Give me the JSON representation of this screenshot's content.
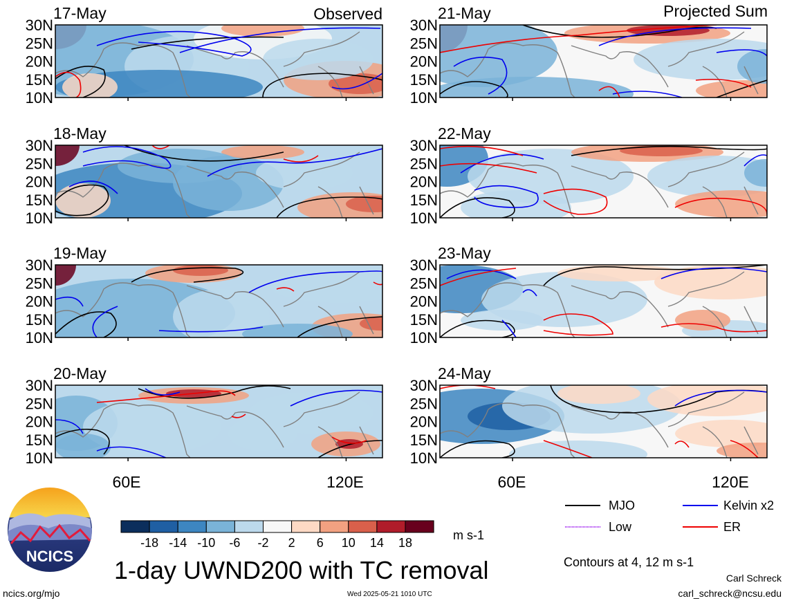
{
  "figure": {
    "title": "1-day UWND200 with TC removal",
    "units": "m s-1",
    "contour_note": "Contours at 4, 12 m s-1",
    "website": "ncics.org/mjo",
    "timestamp": "Wed 2025-05-21 1010 UTC",
    "author": "Carl Schreck",
    "email": "carl_schreck@ncsu.edu",
    "logo_text": "NCICS"
  },
  "columns": {
    "left": "Observed",
    "right": "Projected Sum"
  },
  "panels": {
    "left": [
      "17-May",
      "18-May",
      "19-May",
      "20-May"
    ],
    "right": [
      "21-May",
      "22-May",
      "23-May",
      "24-May"
    ]
  },
  "axes": {
    "lat_ticks": [
      "30N",
      "25N",
      "20N",
      "15N",
      "10N"
    ],
    "lon_ticks": [
      "60E",
      "120E"
    ],
    "lon_range": [
      40,
      130
    ],
    "lat_range": [
      10,
      30
    ]
  },
  "colorbar": {
    "labels": [
      "-18",
      "-14",
      "-10",
      "-6",
      "-2",
      "2",
      "6",
      "10",
      "14",
      "18"
    ],
    "colors": [
      "#0b2e5c",
      "#1f5fa3",
      "#3d86c1",
      "#7ab3d8",
      "#bcd9ec",
      "#f7f7f7",
      "#fdd9c4",
      "#f2a181",
      "#d9604b",
      "#b01c2a",
      "#68001d"
    ]
  },
  "legend": [
    {
      "label": "MJO",
      "color": "#000000"
    },
    {
      "label": "Kelvin x2",
      "color": "#0000ee"
    },
    {
      "label": "Low",
      "color": "#a020f0"
    },
    {
      "label": "ER",
      "color": "#ee0000"
    }
  ]
}
